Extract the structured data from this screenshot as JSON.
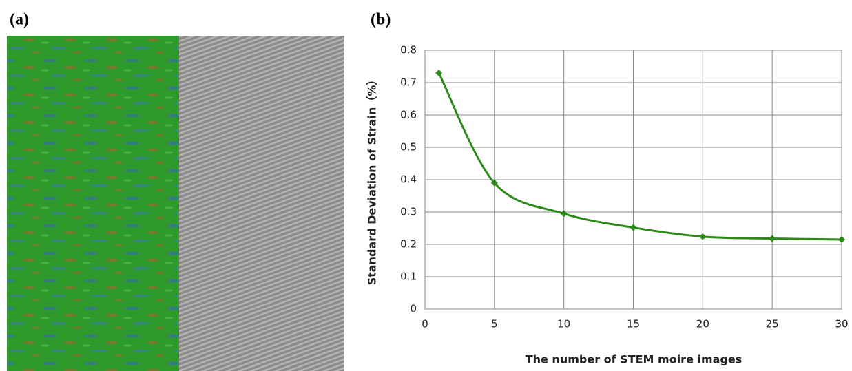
{
  "labels": {
    "a": "(a)",
    "b": "(b)"
  },
  "chart_data": {
    "type": "line",
    "xlabel": "The number of STEM moire images",
    "ylabel": "Standard Deviation of Strain（%）",
    "x": [
      1,
      5,
      10,
      15,
      20,
      25,
      30
    ],
    "series": [
      {
        "color": "#2b8a17",
        "values": [
          0.73,
          0.39,
          0.295,
          0.252,
          0.224,
          0.218,
          0.215
        ]
      }
    ],
    "xlim": [
      0,
      30
    ],
    "xticks": [
      0,
      5,
      10,
      15,
      20,
      25,
      30
    ],
    "ylim": [
      0,
      0.8
    ],
    "yticks": [
      0,
      0.1,
      0.2,
      0.3,
      0.4,
      0.5,
      0.6,
      0.7,
      0.8
    ],
    "grid": true
  }
}
